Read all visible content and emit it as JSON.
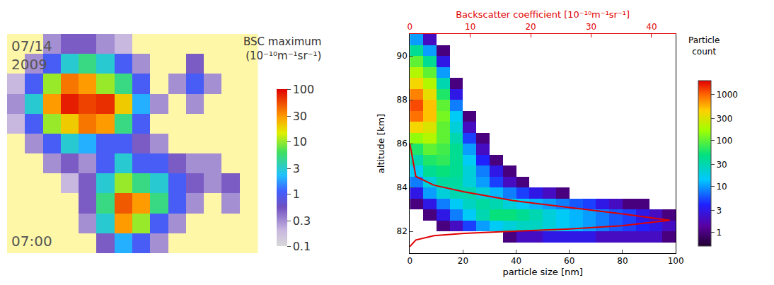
{
  "chart_data": [
    {
      "type": "heatmap",
      "date_lines": [
        "07/14",
        "2009"
      ],
      "time": "07:00",
      "colorbar_title": [
        "BSC maximum",
        "(10⁻¹⁰m⁻¹sr⁻¹)"
      ],
      "log": true,
      "tick_labels": false,
      "zlim": [
        0.1,
        100
      ],
      "zticks": [
        0.1,
        0.3,
        1,
        3,
        10,
        30,
        100
      ],
      "cells": [
        [
          null,
          null,
          0.3,
          0.5,
          0.5,
          0.3,
          0.2,
          null,
          null,
          null,
          null,
          null,
          null,
          null
        ],
        [
          null,
          0.3,
          1,
          3,
          5,
          3,
          1,
          0.3,
          null,
          null,
          0.5,
          null,
          null,
          null
        ],
        [
          0.2,
          1,
          10,
          40,
          30,
          10,
          5,
          1,
          null,
          0.3,
          1,
          0.3,
          null,
          null
        ],
        [
          0.3,
          3,
          30,
          80,
          60,
          70,
          20,
          2,
          0.3,
          null,
          0.3,
          null,
          null,
          null
        ],
        [
          0.2,
          1,
          10,
          20,
          40,
          30,
          5,
          1,
          null,
          null,
          null,
          null,
          null,
          null
        ],
        [
          null,
          0.3,
          1,
          3,
          2,
          1,
          1,
          0.5,
          0.3,
          null,
          null,
          null,
          null,
          null
        ],
        [
          null,
          null,
          0.3,
          0.5,
          0.3,
          1,
          3,
          1,
          1,
          0.5,
          0.3,
          0.3,
          null,
          null
        ],
        [
          null,
          null,
          null,
          0.2,
          0.5,
          3,
          10,
          5,
          3,
          1,
          0.5,
          0.3,
          0.5,
          null
        ],
        [
          null,
          null,
          null,
          null,
          0.5,
          5,
          50,
          30,
          5,
          1,
          0.3,
          null,
          0.3,
          null
        ],
        [
          null,
          null,
          null,
          null,
          0.3,
          3,
          30,
          10,
          1,
          0.3,
          null,
          null,
          null,
          null
        ],
        [
          null,
          null,
          null,
          null,
          null,
          0.5,
          2,
          1,
          0.3,
          null,
          null,
          null,
          null,
          null
        ]
      ]
    },
    {
      "type": "heatmap",
      "x_label": "particle size [nm]",
      "y_label": "altitude [km]",
      "x2_label": "Backscatter coefficient [10⁻¹⁰m⁻¹sr⁻¹]",
      "colorbar_title": [
        "Particle",
        "count"
      ],
      "log": true,
      "xlim": [
        0,
        100
      ],
      "xticks": [
        0,
        20,
        40,
        60,
        80,
        100
      ],
      "ylim": [
        81,
        91
      ],
      "yticks": [
        82,
        84,
        86,
        88,
        90
      ],
      "x2lim": [
        0,
        44
      ],
      "x2ticks": [
        0,
        10,
        20,
        30,
        40
      ],
      "zlim": [
        0.5,
        2000
      ],
      "zticks": [
        1,
        3,
        10,
        30,
        100,
        300,
        1000
      ],
      "x": [
        2.5,
        7.5,
        12.5,
        17.5,
        22.5,
        27.5,
        32.5,
        37.5,
        42.5,
        47.5,
        52.5,
        57.5,
        62.5,
        67.5,
        72.5,
        77.5,
        82.5,
        87.5,
        92.5,
        97.5
      ],
      "y": [
        81.25,
        81.75,
        82.25,
        82.75,
        83.25,
        83.75,
        84.25,
        84.75,
        85.25,
        85.75,
        86.25,
        86.75,
        87.25,
        87.75,
        88.25,
        88.75,
        89.25,
        89.75,
        90.25,
        90.75
      ],
      "cells": [
        [
          null,
          null,
          null,
          null,
          null,
          null,
          null,
          null,
          null,
          null,
          null,
          null,
          null,
          null,
          null,
          null,
          null,
          null,
          null,
          null
        ],
        [
          null,
          null,
          null,
          null,
          null,
          null,
          null,
          1,
          2,
          2,
          3,
          3,
          3,
          3,
          2,
          2,
          2,
          2,
          2,
          1
        ],
        [
          null,
          null,
          1,
          2,
          5,
          10,
          15,
          20,
          25,
          25,
          20,
          15,
          12,
          10,
          8,
          6,
          5,
          4,
          3,
          2
        ],
        [
          null,
          1,
          3,
          8,
          15,
          30,
          50,
          50,
          40,
          30,
          20,
          15,
          12,
          10,
          8,
          6,
          5,
          3,
          2,
          1
        ],
        [
          1,
          3,
          8,
          15,
          25,
          35,
          30,
          20,
          15,
          12,
          10,
          8,
          6,
          5,
          3,
          2,
          1,
          1,
          null,
          null
        ],
        [
          3,
          10,
          20,
          30,
          30,
          20,
          12,
          8,
          5,
          3,
          2,
          1,
          null,
          null,
          null,
          null,
          null,
          null,
          null,
          null
        ],
        [
          8,
          20,
          35,
          35,
          20,
          10,
          5,
          2,
          1,
          null,
          null,
          null,
          null,
          null,
          null,
          null,
          null,
          null,
          null,
          null
        ],
        [
          15,
          40,
          50,
          40,
          20,
          8,
          3,
          1,
          null,
          null,
          null,
          null,
          null,
          null,
          null,
          null,
          null,
          null,
          null,
          null
        ],
        [
          30,
          60,
          70,
          40,
          15,
          4,
          1,
          null,
          null,
          null,
          null,
          null,
          null,
          null,
          null,
          null,
          null,
          null,
          null,
          null
        ],
        [
          60,
          100,
          80,
          40,
          10,
          2,
          null,
          null,
          null,
          null,
          null,
          null,
          null,
          null,
          null,
          null,
          null,
          null,
          null,
          null
        ],
        [
          150,
          200,
          100,
          30,
          5,
          1,
          null,
          null,
          null,
          null,
          null,
          null,
          null,
          null,
          null,
          null,
          null,
          null,
          null,
          null
        ],
        [
          400,
          300,
          100,
          20,
          2,
          null,
          null,
          null,
          null,
          null,
          null,
          null,
          null,
          null,
          null,
          null,
          null,
          null,
          null,
          null
        ],
        [
          900,
          500,
          120,
          15,
          1,
          null,
          null,
          null,
          null,
          null,
          null,
          null,
          null,
          null,
          null,
          null,
          null,
          null,
          null,
          null
        ],
        [
          1200,
          500,
          100,
          8,
          null,
          null,
          null,
          null,
          null,
          null,
          null,
          null,
          null,
          null,
          null,
          null,
          null,
          null,
          null,
          null
        ],
        [
          800,
          350,
          60,
          3,
          null,
          null,
          null,
          null,
          null,
          null,
          null,
          null,
          null,
          null,
          null,
          null,
          null,
          null,
          null,
          null
        ],
        [
          400,
          200,
          30,
          1,
          null,
          null,
          null,
          null,
          null,
          null,
          null,
          null,
          null,
          null,
          null,
          null,
          null,
          null,
          null,
          null
        ],
        [
          200,
          100,
          10,
          null,
          null,
          null,
          null,
          null,
          null,
          null,
          null,
          null,
          null,
          null,
          null,
          null,
          null,
          null,
          null,
          null
        ],
        [
          100,
          40,
          3,
          null,
          null,
          null,
          null,
          null,
          null,
          null,
          null,
          null,
          null,
          null,
          null,
          null,
          null,
          null,
          null,
          null
        ],
        [
          40,
          10,
          1,
          null,
          null,
          null,
          null,
          null,
          null,
          null,
          null,
          null,
          null,
          null,
          null,
          null,
          null,
          null,
          null,
          null
        ],
        [
          10,
          2,
          null,
          null,
          null,
          null,
          null,
          null,
          null,
          null,
          null,
          null,
          null,
          null,
          null,
          null,
          null,
          null,
          null,
          null
        ]
      ],
      "series": [
        {
          "type": "line",
          "color": "#e00000",
          "axis": "x2",
          "x": [
            0,
            1,
            4,
            9,
            17,
            26,
            35,
            43,
            35,
            26,
            17,
            9,
            4,
            1,
            0.3,
            0
          ],
          "y": [
            81.3,
            81.6,
            81.8,
            81.9,
            82.0,
            82.1,
            82.25,
            82.5,
            82.8,
            83.1,
            83.4,
            83.8,
            84.1,
            84.5,
            85.5,
            86
          ]
        }
      ]
    }
  ]
}
